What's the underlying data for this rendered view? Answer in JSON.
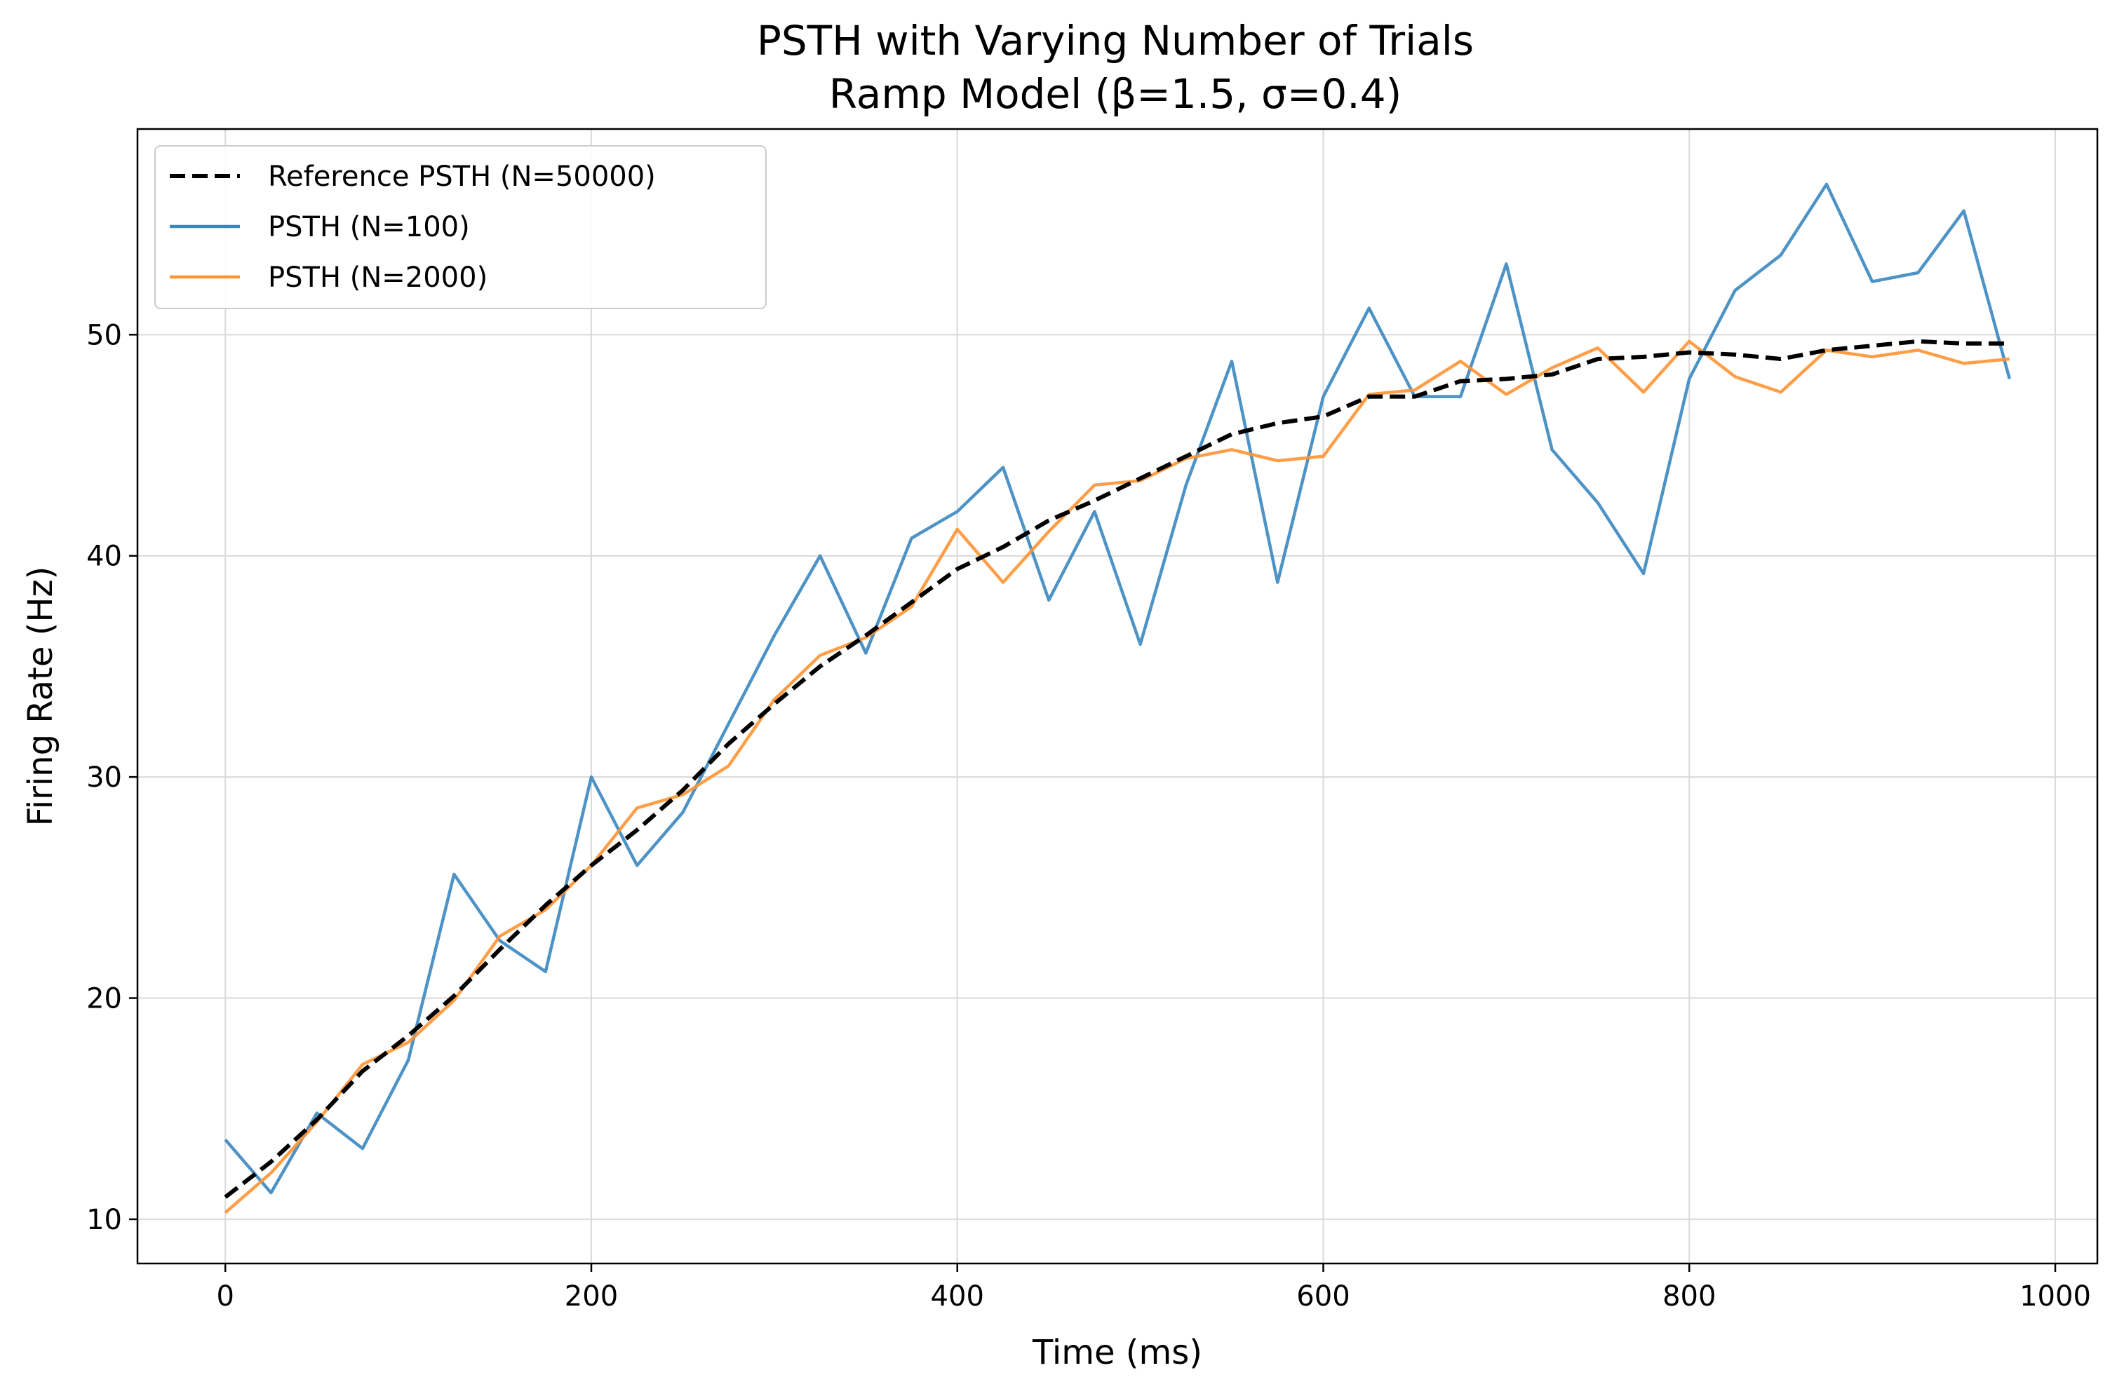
{
  "chart_data": {
    "type": "line",
    "title": "PSTH with Varying Number of Trials",
    "subtitle": "Ramp Model (β=1.5, σ=0.4)",
    "xlabel": "Time (ms)",
    "ylabel": "Firing Rate (Hz)",
    "xlim": [
      -48,
      1023
    ],
    "ylim": [
      8,
      59.3
    ],
    "xticks": [
      0,
      200,
      400,
      600,
      800,
      1000
    ],
    "yticks": [
      10,
      20,
      30,
      40,
      50
    ],
    "grid": true,
    "legend_position": "top-left",
    "x": [
      0,
      25,
      50,
      75,
      100,
      125,
      150,
      175,
      200,
      225,
      250,
      275,
      300,
      325,
      350,
      375,
      400,
      425,
      450,
      475,
      500,
      525,
      550,
      575,
      600,
      625,
      650,
      675,
      700,
      725,
      750,
      775,
      800,
      825,
      850,
      875,
      900,
      925,
      950,
      975
    ],
    "series": [
      {
        "name": "Reference PSTH (N=50000)",
        "color": "#000000",
        "style": "dashed",
        "values": [
          11.0,
          12.6,
          14.5,
          16.7,
          18.3,
          20.1,
          22.2,
          24.2,
          26.0,
          27.6,
          29.4,
          31.5,
          33.3,
          35.0,
          36.4,
          37.9,
          39.4,
          40.4,
          41.6,
          42.5,
          43.5,
          44.5,
          45.5,
          46.0,
          46.3,
          47.2,
          47.2,
          47.9,
          48.0,
          48.2,
          48.9,
          49.0,
          49.2,
          49.1,
          48.9,
          49.3,
          49.5,
          49.7,
          49.6,
          49.6
        ]
      },
      {
        "name": "PSTH (N=100)",
        "color": "#3a87c0",
        "style": "solid",
        "values": [
          13.6,
          11.2,
          14.8,
          13.2,
          17.2,
          25.6,
          22.6,
          21.2,
          30.0,
          26.0,
          28.4,
          32.4,
          36.4,
          40.0,
          35.6,
          40.8,
          42.0,
          44.0,
          38.0,
          42.0,
          36.0,
          43.2,
          48.8,
          38.8,
          47.2,
          51.2,
          47.2,
          47.2,
          53.2,
          44.8,
          42.4,
          39.2,
          48.0,
          52.0,
          53.6,
          56.8,
          52.4,
          52.8,
          55.6,
          48.0
        ]
      },
      {
        "name": "PSTH (N=2000)",
        "color": "#ff9433",
        "style": "solid",
        "values": [
          10.3,
          12.1,
          14.4,
          17.0,
          18.0,
          19.9,
          22.8,
          24.0,
          26.0,
          28.6,
          29.2,
          30.5,
          33.5,
          35.5,
          36.3,
          37.7,
          41.2,
          38.8,
          41.1,
          43.2,
          43.4,
          44.4,
          44.8,
          44.3,
          44.5,
          47.3,
          47.5,
          48.8,
          47.3,
          48.5,
          49.4,
          47.4,
          49.7,
          48.1,
          47.4,
          49.3,
          49.0,
          49.3,
          48.7,
          48.9
        ]
      }
    ]
  }
}
